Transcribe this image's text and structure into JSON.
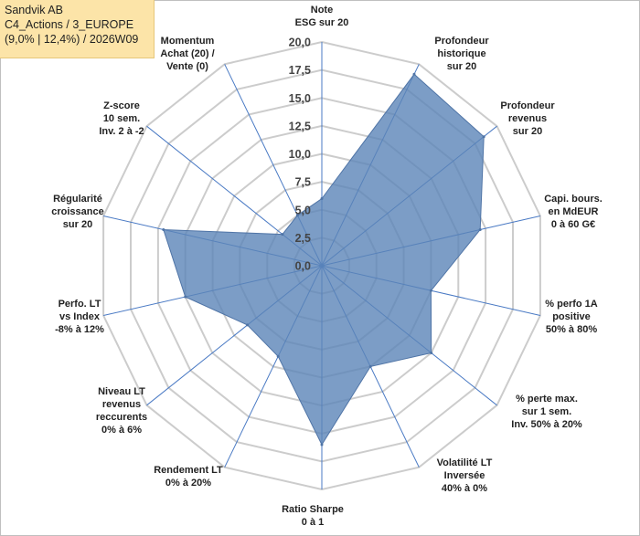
{
  "info": {
    "line1": "Sandvik AB",
    "line2": "C4_Actions / 3_EUROPE",
    "line3": "(9,0% | 12,4%) / 2026W09"
  },
  "chart_data": {
    "type": "radar",
    "series": [
      {
        "name": "Sandvik AB",
        "color": "#5b84b8",
        "values": [
          6.0,
          19.0,
          18.5,
          14.5,
          10.0,
          12.5,
          10.0,
          16.0,
          9.0,
          8.5,
          12.5,
          14.5,
          4.5,
          5.0
        ]
      }
    ],
    "rmin": 0,
    "rmax": 20,
    "tick_values": [
      0,
      2.5,
      5,
      7.5,
      10,
      12.5,
      15,
      17.5,
      20
    ],
    "tick_labels": [
      "0,0",
      "2,5",
      "5,0",
      "7,5",
      "10,0",
      "12,5",
      "15,0",
      "17,5",
      "20,0"
    ],
    "axes": [
      [
        "Note",
        "ESG sur 20"
      ],
      [
        "Profondeur",
        "historique",
        "sur 20"
      ],
      [
        "Profondeur",
        "revenus",
        "sur 20"
      ],
      [
        "Capi. bours.",
        "en MdEUR",
        "0 à 60 G€"
      ],
      [
        "% perfo 1A",
        "positive",
        "50% à 80%"
      ],
      [
        "% perte max.",
        "sur 1 sem.",
        "Inv. 50% à 20%"
      ],
      [
        "Volatilité LT",
        "Inversée",
        "40% à 0%"
      ],
      [
        "Ratio Sharpe",
        "0 à 1"
      ],
      [
        "Rendement LT",
        "0% à 20%"
      ],
      [
        "Niveau LT",
        "revenus",
        "reccurents",
        "0% à 6%"
      ],
      [
        "Perfo. LT",
        "vs Index",
        "-8% à 12%"
      ],
      [
        "Régularité",
        "croissance",
        "sur 20"
      ],
      [
        "Z-score",
        "10 sem.",
        "Inv. 2 à -2"
      ],
      [
        "Momentum",
        "Achat (20) /",
        "Vente (0)"
      ]
    ]
  }
}
